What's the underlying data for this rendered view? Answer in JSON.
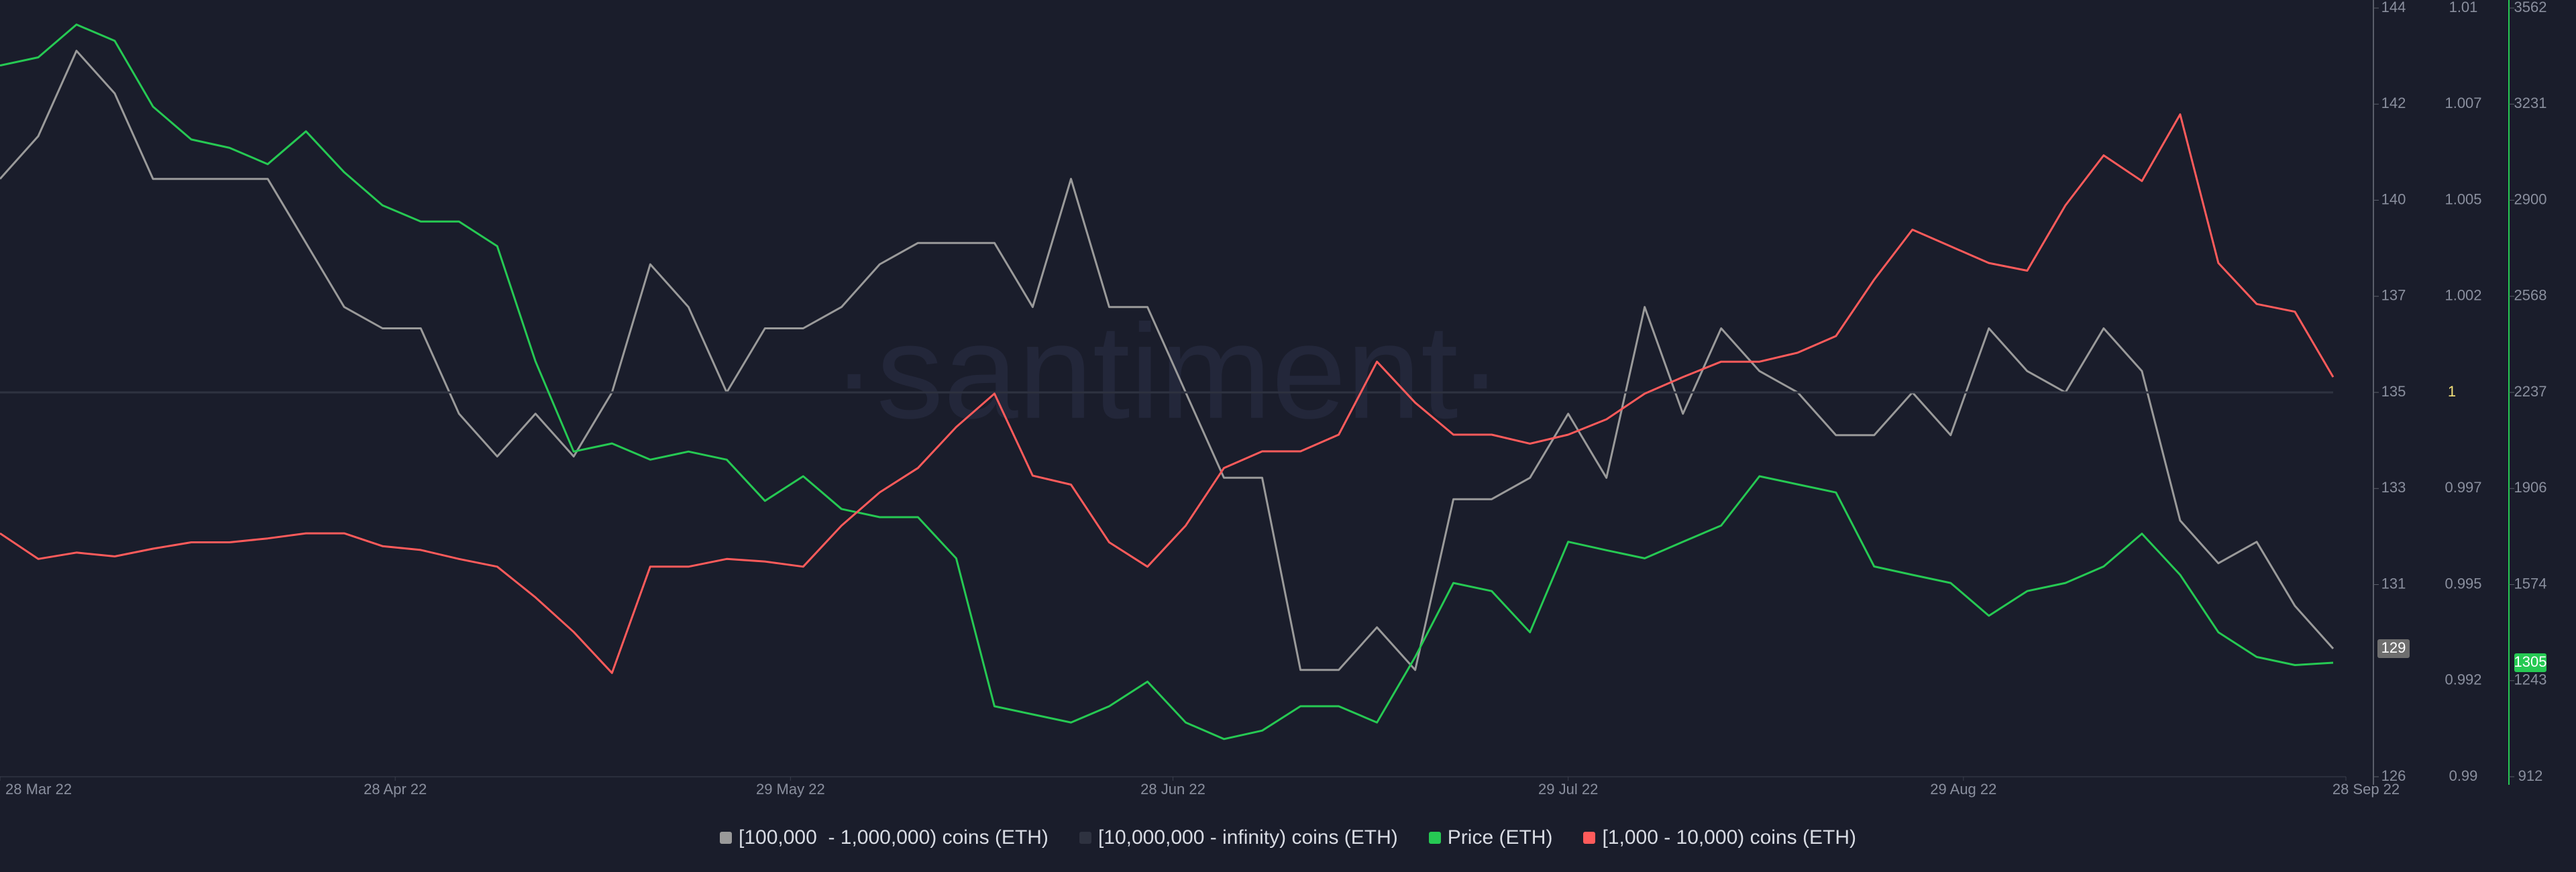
{
  "chart_data": {
    "type": "line",
    "watermark": "·santiment·",
    "legend": "bottom",
    "x": [
      "2022-03-28",
      "2022-03-31",
      "2022-04-03",
      "2022-04-06",
      "2022-04-09",
      "2022-04-12",
      "2022-04-15",
      "2022-04-18",
      "2022-04-21",
      "2022-04-24",
      "2022-04-27",
      "2022-04-30",
      "2022-05-03",
      "2022-05-06",
      "2022-05-09",
      "2022-05-12",
      "2022-05-15",
      "2022-05-18",
      "2022-05-21",
      "2022-05-24",
      "2022-05-27",
      "2022-05-30",
      "2022-06-02",
      "2022-06-05",
      "2022-06-08",
      "2022-06-11",
      "2022-06-14",
      "2022-06-17",
      "2022-06-20",
      "2022-06-23",
      "2022-06-26",
      "2022-06-29",
      "2022-07-02",
      "2022-07-05",
      "2022-07-08",
      "2022-07-11",
      "2022-07-14",
      "2022-07-17",
      "2022-07-20",
      "2022-07-23",
      "2022-07-26",
      "2022-07-29",
      "2022-08-01",
      "2022-08-04",
      "2022-08-07",
      "2022-08-10",
      "2022-08-13",
      "2022-08-16",
      "2022-08-19",
      "2022-08-22",
      "2022-08-25",
      "2022-08-28",
      "2022-08-31",
      "2022-09-03",
      "2022-09-06",
      "2022-09-09",
      "2022-09-12",
      "2022-09-15",
      "2022-09-18",
      "2022-09-21",
      "2022-09-24",
      "2022-09-27"
    ],
    "xlim": [
      "2022-03-28",
      "2022-09-28"
    ],
    "xticks": [
      {
        "value": "2022-03-28",
        "label": "28 Mar 22"
      },
      {
        "value": "2022-04-28",
        "label": "28 Apr 22"
      },
      {
        "value": "2022-05-29",
        "label": "29 May 22"
      },
      {
        "value": "2022-06-28",
        "label": "28 Jun 22"
      },
      {
        "value": "2022-07-29",
        "label": "29 Jul 22"
      },
      {
        "value": "2022-08-29",
        "label": "29 Aug 22"
      },
      {
        "value": "2022-09-28",
        "label": "28 Sep 22"
      }
    ],
    "ylim": [
      126,
      144
    ],
    "yticks": [
      126,
      {
        "value": 130.5,
        "label": "131"
      },
      {
        "value": 132.75,
        "label": "133"
      },
      135,
      {
        "value": 137.25,
        "label": "137"
      },
      {
        "value": 139.5,
        "label": "140"
      },
      {
        "value": 141.75,
        "label": "142"
      },
      144
    ],
    "y2lim": [
      0.99,
      1.01
    ],
    "y2ticks": [
      0.99,
      {
        "value": 0.9925,
        "label": "0.992"
      },
      0.995,
      {
        "value": 0.9975,
        "label": "0.997"
      },
      {
        "value": 1.0025,
        "label": "1.002"
      },
      1.005,
      {
        "value": 1.0075,
        "label": "1.007"
      },
      1.01
    ],
    "y3lim": [
      912,
      3562
    ],
    "y3ticks": [
      912,
      {
        "value": 1243.25,
        "label": "1243"
      },
      {
        "value": 1574.5,
        "label": "1574"
      },
      {
        "value": 1905.75,
        "label": "1906"
      },
      2237,
      {
        "value": 2568.25,
        "label": "2568"
      },
      {
        "value": 2899.5,
        "label": "2900"
      },
      {
        "value": 3230.75,
        "label": "3231"
      },
      3562
    ],
    "y4lim": [
      5800,
      6400
    ],
    "series": [
      {
        "name": "[100,000  - 1,000,000) coins (ETH)",
        "color": "#9a9a9a",
        "axis": "y",
        "values": [
          140,
          141,
          143,
          142,
          140,
          140,
          140,
          140,
          138.5,
          137,
          136.5,
          136.5,
          134.5,
          133.5,
          134.5,
          133.5,
          135,
          138,
          137,
          135,
          136.5,
          136.5,
          137,
          138,
          138.5,
          138.5,
          138.5,
          137,
          140,
          137,
          137,
          135,
          133,
          133,
          128.5,
          128.5,
          129.5,
          128.5,
          132.5,
          132.5,
          133,
          134.5,
          133,
          137,
          134.5,
          136.5,
          135.5,
          135,
          134,
          134,
          135,
          134,
          136.5,
          135.5,
          135,
          136.5,
          135.5,
          132,
          131,
          131.5,
          130,
          129
        ]
      },
      {
        "name": "[10,000,000 - infinity) coins (ETH)",
        "color": "#2e3240",
        "axis": "y2",
        "values": [
          1,
          1,
          1,
          1,
          1,
          1,
          1,
          1,
          1,
          1,
          1,
          1,
          1,
          1,
          1,
          1,
          1,
          1,
          1,
          1,
          1,
          1,
          1,
          1,
          1,
          1,
          1,
          1,
          1,
          1,
          1,
          1,
          1,
          1,
          1,
          1,
          1,
          1,
          1,
          1,
          1,
          1,
          1,
          1,
          1,
          1,
          1,
          1,
          1,
          1,
          1,
          1,
          1,
          1,
          1,
          1,
          1,
          1,
          1,
          1,
          1,
          1
        ]
      },
      {
        "name": "Price (ETH)",
        "color": "#26c953",
        "axis": "y3",
        "values": [
          3364,
          3392,
          3505,
          3449,
          3222,
          3109,
          3080,
          3024,
          3137,
          2996,
          2882,
          2826,
          2826,
          2741,
          2344,
          2033,
          2061,
          2005,
          2033,
          2005,
          1863,
          1948,
          1835,
          1807,
          1807,
          1665,
          1155,
          1127,
          1099,
          1155,
          1240,
          1099,
          1042,
          1071,
          1155,
          1155,
          1099,
          1325,
          1580,
          1552,
          1410,
          1722,
          1693,
          1665,
          1722,
          1778,
          1948,
          1920,
          1892,
          1637,
          1608,
          1580,
          1467,
          1552,
          1580,
          1637,
          1750,
          1608,
          1410,
          1325,
          1297,
          1305
        ]
      },
      {
        "name": "[1,000 - 10,000) coins (ETH)",
        "color": "#ff5b5b",
        "axis": "y4",
        "values": [
          5990,
          5970,
          5975,
          5972,
          5978,
          5983,
          5983,
          5986,
          5990,
          5990,
          5980,
          5977,
          5970,
          5964,
          5940,
          5913,
          5881,
          5964,
          5964,
          5970,
          5968,
          5964,
          5996,
          6022,
          6041,
          6073,
          6099,
          6035,
          6028,
          5983,
          5964,
          5996,
          6041,
          6054,
          6054,
          6067,
          6124,
          6092,
          6067,
          6067,
          6060,
          6067,
          6079,
          6099,
          6112,
          6124,
          6124,
          6131,
          6144,
          6188,
          6227,
          6214,
          6201,
          6195,
          6246,
          6285,
          6265,
          6317,
          6201,
          6169,
          6163,
          6112
        ]
      }
    ]
  }
}
